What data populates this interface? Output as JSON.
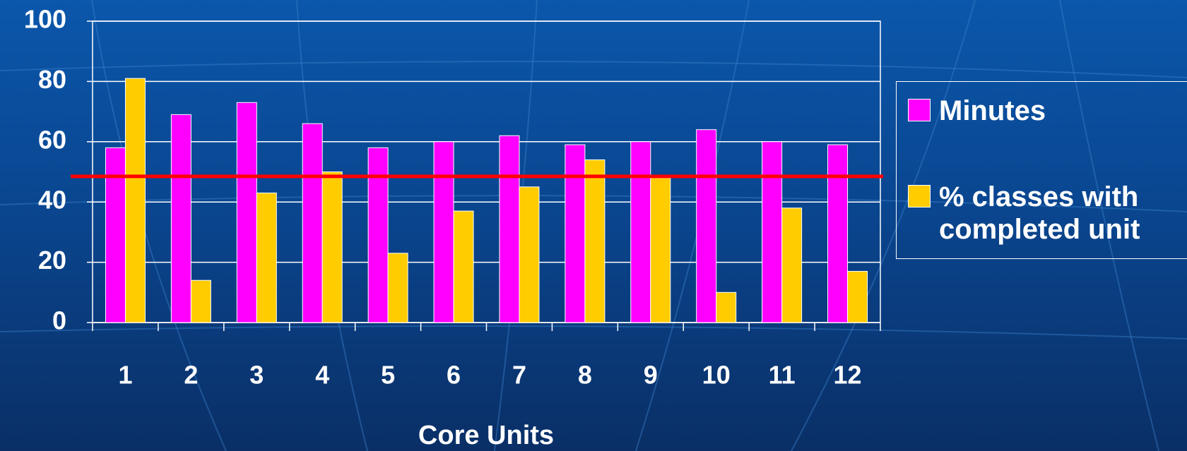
{
  "chart_data": {
    "type": "bar",
    "x_label": "Core Units",
    "categories": [
      "1",
      "2",
      "3",
      "4",
      "5",
      "6",
      "7",
      "8",
      "9",
      "10",
      "11",
      "12"
    ],
    "series": [
      {
        "name": "Minutes",
        "color": "#ff00ff",
        "values": [
          58,
          69,
          73,
          66,
          58,
          60,
          62,
          59,
          60,
          64,
          60,
          59
        ]
      },
      {
        "name": "% classes with completed unit",
        "color": "#ffcc00",
        "values": [
          81,
          14,
          43,
          50,
          23,
          37,
          45,
          54,
          48,
          10,
          38,
          17
        ]
      }
    ],
    "reference_line": {
      "value": 48.5,
      "color": "#ff0000"
    },
    "ylim": [
      0,
      100
    ],
    "yticks": [
      0,
      20,
      40,
      60,
      80,
      100
    ],
    "grid": true,
    "legend": "right"
  }
}
